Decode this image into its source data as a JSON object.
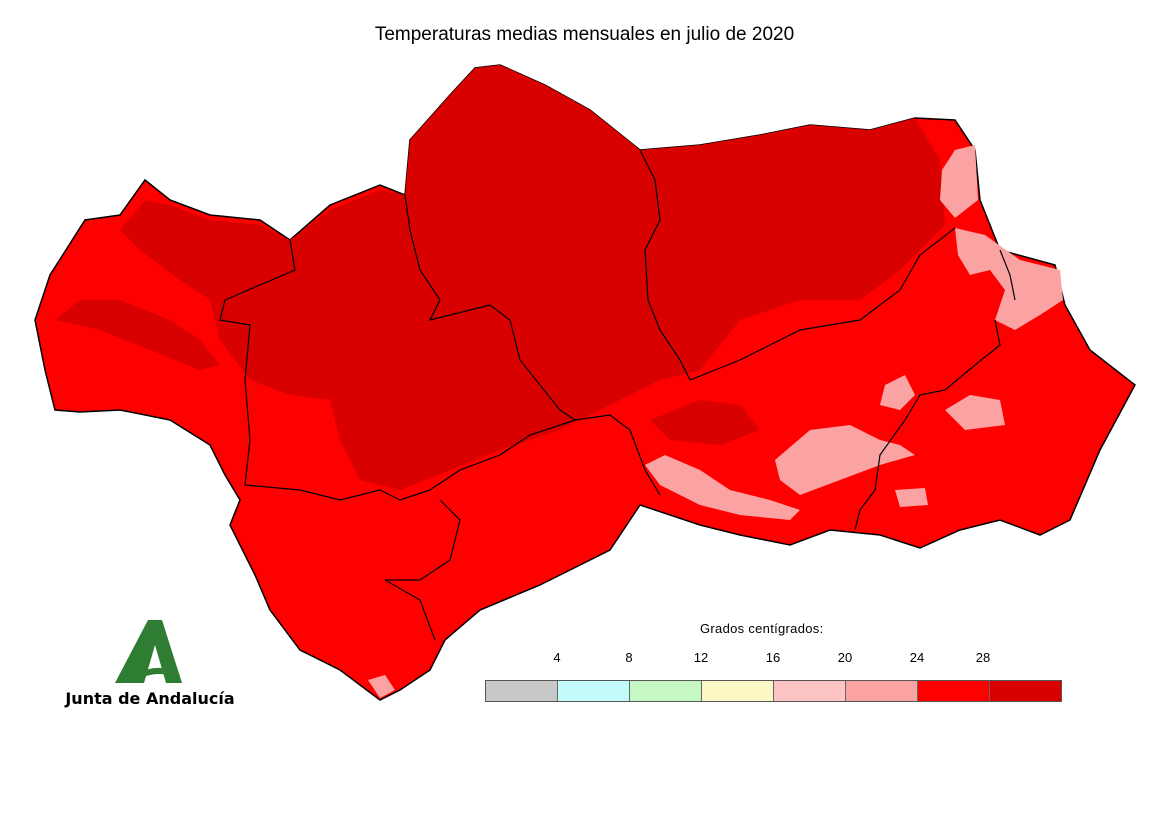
{
  "title": "Temperaturas medias mensuales en julio de 2020",
  "logo": {
    "text": "Junta de Andalucía",
    "color": "#2e7d32"
  },
  "legend": {
    "title": "Grados centígrados:",
    "ticks": [
      "4",
      "8",
      "12",
      "16",
      "20",
      "24",
      "28"
    ],
    "colors": [
      "#c8c8c8",
      "#c3fafa",
      "#c6f8c6",
      "#fcf8c6",
      "#fcc4c4",
      "#fba3a3",
      "#ff0000",
      "#d90000"
    ]
  },
  "map_colors": {
    "dark": "#d90000",
    "red": "#ff0000",
    "pink": "#fba3a3",
    "light": "#fcc4c4",
    "border": "#000000"
  }
}
